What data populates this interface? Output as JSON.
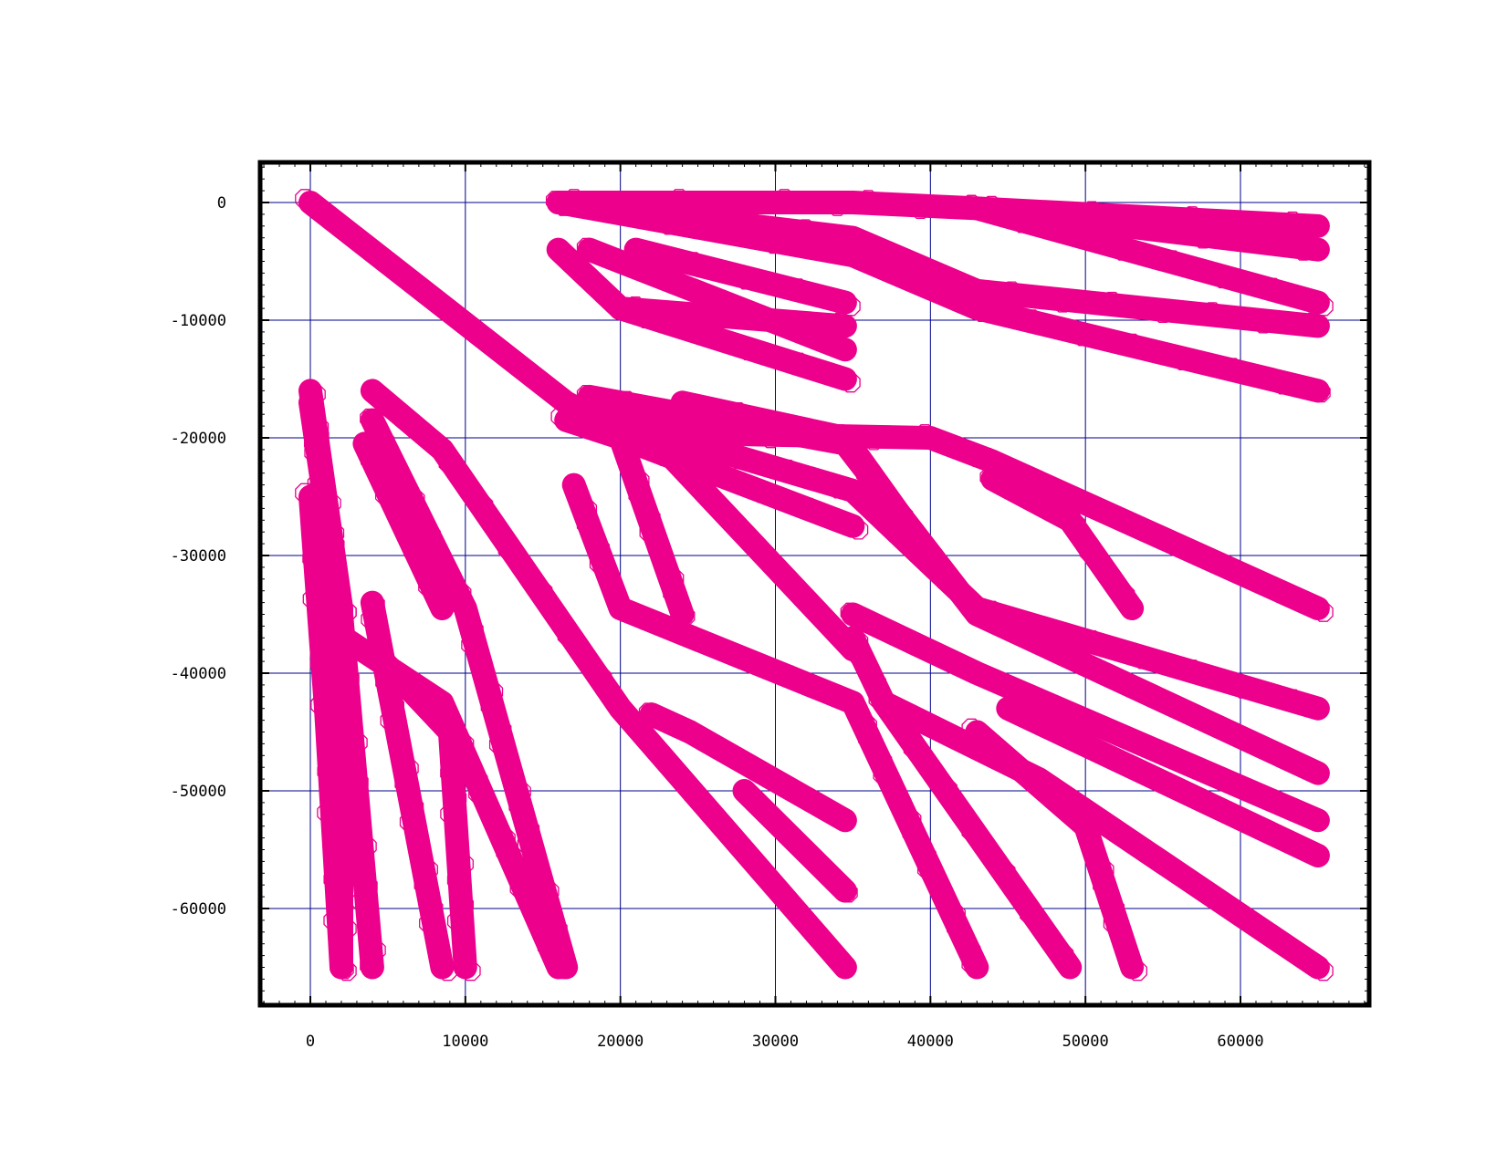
{
  "chart_data": {
    "type": "scatter",
    "title": "",
    "xlabel": "",
    "ylabel": "",
    "xlim": [
      -3000,
      68500
    ],
    "ylim": [
      -68500,
      3000
    ],
    "xticks": [
      0,
      10000,
      20000,
      30000,
      40000,
      50000,
      60000
    ],
    "yticks": [
      0,
      -10000,
      -20000,
      -30000,
      -40000,
      -50000,
      -60000
    ],
    "xtick_labels": [
      "0",
      "10000",
      "20000",
      "30000",
      "40000",
      "50000",
      "60000"
    ],
    "ytick_labels": [
      "0",
      "-10000",
      "-20000",
      "-30000",
      "-40000",
      "-50000",
      "-60000"
    ],
    "grid": true,
    "legend": "none",
    "marker": "hollow-octagon",
    "colors": {
      "series": "#EC008C",
      "grid": "#00008B",
      "axes": "#000000"
    },
    "series": [
      {
        "values_note": "dense overlapping markers tracing piecewise-linear branches",
        "segments": [
          [
            [
              0,
              0
            ],
            [
              16500,
              -17000
            ],
            [
              20000,
              -19500
            ],
            [
              40000,
              -20000
            ],
            [
              44000,
              -22000
            ],
            [
              65000,
              -34500
            ]
          ],
          [
            [
              16000,
              0
            ],
            [
              35000,
              0
            ],
            [
              43000,
              -500
            ],
            [
              65000,
              -2000
            ]
          ],
          [
            [
              16000,
              0
            ],
            [
              35000,
              -3000
            ],
            [
              43000,
              -7500
            ],
            [
              65000,
              -10500
            ]
          ],
          [
            [
              16000,
              0
            ],
            [
              35000,
              -4500
            ],
            [
              43000,
              -9000
            ],
            [
              65000,
              -16000
            ]
          ],
          [
            [
              43000,
              -500
            ],
            [
              65000,
              -4000
            ]
          ],
          [
            [
              43000,
              -500
            ],
            [
              65000,
              -8500
            ]
          ],
          [
            [
              16000,
              -4000
            ],
            [
              20000,
              -9000
            ],
            [
              34500,
              -10500
            ]
          ],
          [
            [
              18000,
              -4000
            ],
            [
              34500,
              -12500
            ]
          ],
          [
            [
              21000,
              -4000
            ],
            [
              34500,
              -8500
            ]
          ],
          [
            [
              20000,
              -9000
            ],
            [
              34500,
              -15000
            ]
          ],
          [
            [
              16500,
              -18500
            ],
            [
              20000,
              -20000
            ],
            [
              35000,
              -27500
            ]
          ],
          [
            [
              17000,
              -17500
            ],
            [
              35000,
              -24500
            ],
            [
              43000,
              -34500
            ],
            [
              65000,
              -43000
            ]
          ],
          [
            [
              18000,
              -16500
            ],
            [
              34500,
              -20500
            ],
            [
              43000,
              -35000
            ],
            [
              65000,
              -48500
            ]
          ],
          [
            [
              24000,
              -17000
            ],
            [
              34500,
              -20000
            ],
            [
              41000,
              -32000
            ]
          ],
          [
            [
              17000,
              -24000
            ],
            [
              20000,
              -34500
            ],
            [
              35000,
              -42500
            ],
            [
              43000,
              -65000
            ]
          ],
          [
            [
              20000,
              -20000
            ],
            [
              24000,
              -35000
            ]
          ],
          [
            [
              20000,
              -17000
            ],
            [
              35000,
              -38000
            ]
          ],
          [
            [
              35000,
              -35000
            ],
            [
              43000,
              -40000
            ],
            [
              65000,
              -52500
            ]
          ],
          [
            [
              35000,
              -37000
            ],
            [
              37000,
              -42500
            ],
            [
              49000,
              -65000
            ]
          ],
          [
            [
              37000,
              -42500
            ],
            [
              47000,
              -49000
            ],
            [
              65000,
              -65000
            ]
          ],
          [
            [
              43000,
              -45000
            ],
            [
              50000,
              -53000
            ],
            [
              53000,
              -65000
            ]
          ],
          [
            [
              45000,
              -43000
            ],
            [
              65000,
              -55500
            ]
          ],
          [
            [
              44000,
              -23500
            ],
            [
              49000,
              -27000
            ],
            [
              53000,
              -34500
            ]
          ],
          [
            [
              0,
              -16000
            ],
            [
              2000,
              -34500
            ],
            [
              2000,
              -65000
            ]
          ],
          [
            [
              0,
              -17000
            ],
            [
              2000,
              -35000
            ],
            [
              4000,
              -65000
            ]
          ],
          [
            [
              0,
              -25000
            ],
            [
              1000,
              -43000
            ],
            [
              2000,
              -65000
            ]
          ],
          [
            [
              4000,
              -16000
            ],
            [
              8500,
              -21000
            ],
            [
              20000,
              -43000
            ],
            [
              34500,
              -65000
            ]
          ],
          [
            [
              4000,
              -18500
            ],
            [
              10000,
              -34500
            ],
            [
              16500,
              -65000
            ]
          ],
          [
            [
              3500,
              -20500
            ],
            [
              8500,
              -34500
            ]
          ],
          [
            [
              4000,
              -38000
            ],
            [
              9000,
              -45000
            ],
            [
              10000,
              -65000
            ]
          ],
          [
            [
              1000,
              -36000
            ],
            [
              8500,
              -42500
            ],
            [
              16000,
              -65000
            ]
          ],
          [
            [
              4000,
              -34000
            ],
            [
              8500,
              -65000
            ]
          ],
          [
            [
              22000,
              -43500
            ],
            [
              24500,
              -45000
            ],
            [
              34500,
              -52500
            ]
          ],
          [
            [
              28000,
              -50000
            ],
            [
              34500,
              -58500
            ]
          ]
        ]
      }
    ]
  }
}
